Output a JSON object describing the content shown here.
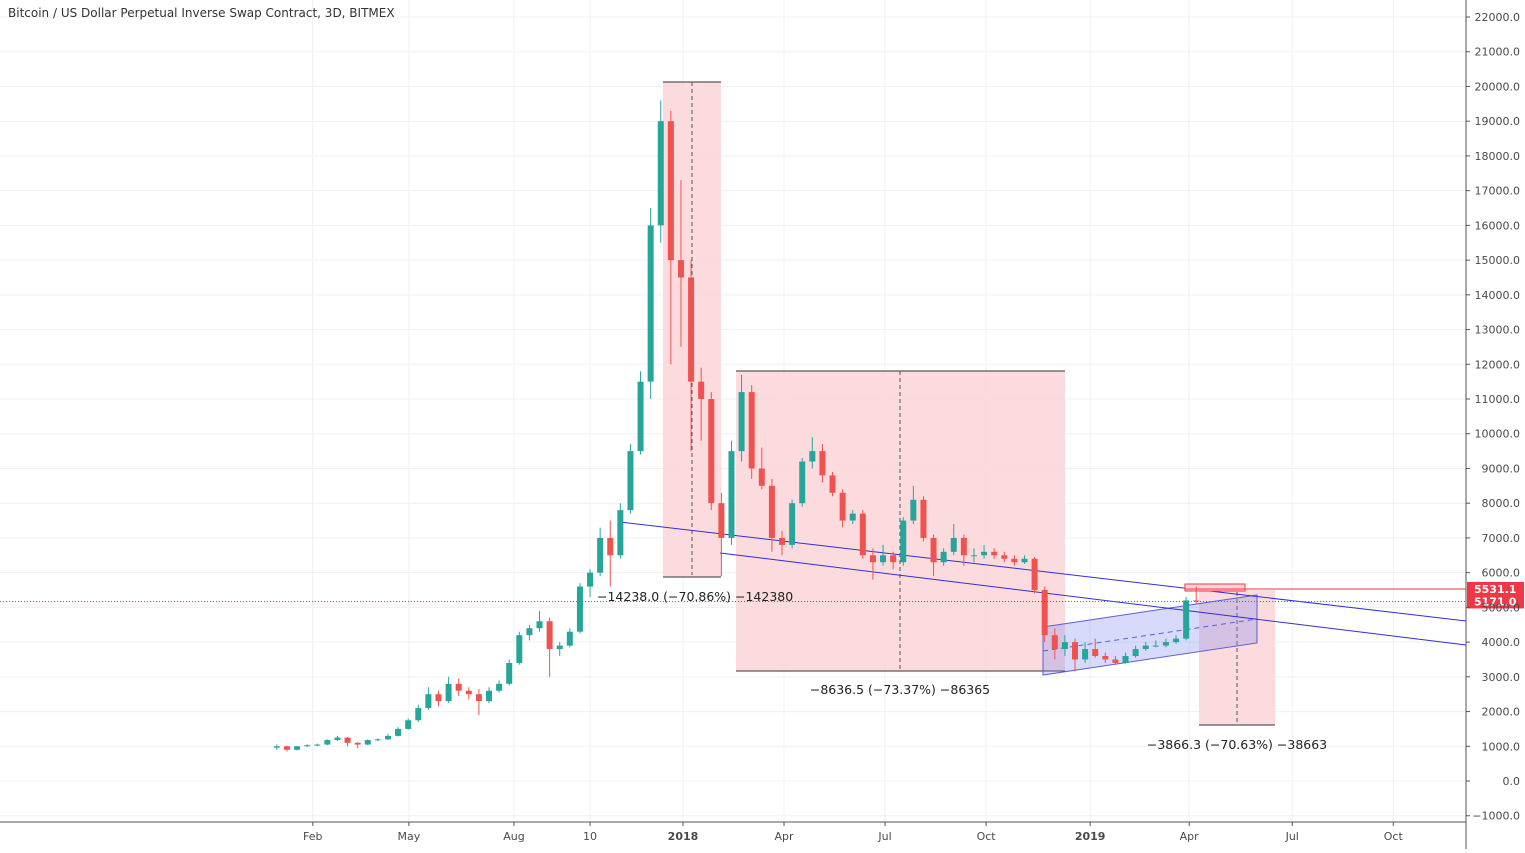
{
  "chart_data": {
    "type": "candlestick",
    "title": "Bitcoin / US Dollar Perpetual Inverse Swap Contract, 3D, BITMEX",
    "up_color": "#26a69a",
    "down_color": "#ef5350",
    "grid": true,
    "ylim": [
      -1180,
      22490
    ],
    "yticks": [
      {
        "value": 22000,
        "label": "22000.0"
      },
      {
        "value": 21000,
        "label": "21000.0"
      },
      {
        "value": 20000,
        "label": "20000.0"
      },
      {
        "value": 19000,
        "label": "19000.0"
      },
      {
        "value": 18000,
        "label": "18000.0"
      },
      {
        "value": 17000,
        "label": "17000.0"
      },
      {
        "value": 16000,
        "label": "16000.0"
      },
      {
        "value": 15000,
        "label": "15000.0"
      },
      {
        "value": 14000,
        "label": "14000.0"
      },
      {
        "value": 13000,
        "label": "13000.0"
      },
      {
        "value": 12000,
        "label": "12000.0"
      },
      {
        "value": 11000,
        "label": "11000.0"
      },
      {
        "value": 10000,
        "label": "10000.0"
      },
      {
        "value": 9000,
        "label": "9000.0"
      },
      {
        "value": 8000,
        "label": "8000.0"
      },
      {
        "value": 7000,
        "label": "7000.0"
      },
      {
        "value": 6000,
        "label": "6000.0"
      },
      {
        "value": 5000,
        "label": "5000.0"
      },
      {
        "value": 4000,
        "label": "4000.0"
      },
      {
        "value": 3000,
        "label": "3000.0"
      },
      {
        "value": 2000,
        "label": "2000.0"
      },
      {
        "value": 1000,
        "label": "1000.0"
      },
      {
        "value": 0,
        "label": "0.0"
      },
      {
        "value": -1000,
        "label": "−1000.0"
      }
    ],
    "xlim": [
      -27.4,
      117.7
    ],
    "xticks": [
      {
        "value": 3.56,
        "label": "Feb"
      },
      {
        "value": 13.07,
        "label": "May"
      },
      {
        "value": 23.47,
        "label": "Aug"
      },
      {
        "value": 31.0,
        "label": "10"
      },
      {
        "value": 40.2,
        "label": "2018"
      },
      {
        "value": 50.2,
        "label": "Apr"
      },
      {
        "value": 60.2,
        "label": "Jul"
      },
      {
        "value": 70.2,
        "label": "Oct"
      },
      {
        "value": 80.5,
        "label": "2019"
      },
      {
        "value": 90.3,
        "label": "Apr"
      },
      {
        "value": 100.5,
        "label": "Jul"
      },
      {
        "value": 110.5,
        "label": "Oct"
      }
    ],
    "ohlc": [
      [
        960,
        1050,
        900,
        1000
      ],
      [
        1000,
        1020,
        850,
        900
      ],
      [
        900,
        1010,
        880,
        1000
      ],
      [
        1000,
        1060,
        980,
        1030
      ],
      [
        1030,
        1080,
        1000,
        1050
      ],
      [
        1050,
        1200,
        1030,
        1180
      ],
      [
        1180,
        1300,
        1150,
        1250
      ],
      [
        1250,
        1270,
        1000,
        1100
      ],
      [
        1100,
        1120,
        950,
        1050
      ],
      [
        1050,
        1200,
        1030,
        1180
      ],
      [
        1180,
        1230,
        1150,
        1200
      ],
      [
        1200,
        1350,
        1180,
        1300
      ],
      [
        1300,
        1550,
        1280,
        1500
      ],
      [
        1500,
        1800,
        1480,
        1750
      ],
      [
        1750,
        2200,
        1700,
        2100
      ],
      [
        2100,
        2700,
        2050,
        2500
      ],
      [
        2500,
        2600,
        2150,
        2300
      ],
      [
        2300,
        3000,
        2250,
        2800
      ],
      [
        2800,
        2950,
        2450,
        2600
      ],
      [
        2600,
        2700,
        2350,
        2500
      ],
      [
        2500,
        2650,
        1900,
        2300
      ],
      [
        2300,
        2700,
        2250,
        2600
      ],
      [
        2600,
        2900,
        2550,
        2800
      ],
      [
        2800,
        3500,
        2750,
        3400
      ],
      [
        3400,
        4300,
        3350,
        4200
      ],
      [
        4200,
        4500,
        4050,
        4400
      ],
      [
        4400,
        4900,
        4300,
        4600
      ],
      [
        4600,
        4700,
        3000,
        3800
      ],
      [
        3800,
        4000,
        3600,
        3900
      ],
      [
        3900,
        4400,
        3850,
        4300
      ],
      [
        4300,
        5700,
        4250,
        5600
      ],
      [
        5600,
        6100,
        5300,
        6000
      ],
      [
        6000,
        7300,
        5900,
        7000
      ],
      [
        7000,
        7500,
        5600,
        6500
      ],
      [
        6500,
        8000,
        6400,
        7800
      ],
      [
        7800,
        9700,
        7700,
        9500
      ],
      [
        9500,
        11800,
        9400,
        11500
      ],
      [
        11500,
        16500,
        11000,
        16000
      ],
      [
        16000,
        19600,
        15500,
        19000
      ],
      [
        19000,
        19300,
        12000,
        15000
      ],
      [
        15000,
        17300,
        12500,
        14500
      ],
      [
        14500,
        15000,
        9500,
        11500
      ],
      [
        11500,
        11900,
        9800,
        11000
      ],
      [
        11000,
        11200,
        7800,
        8000
      ],
      [
        8000,
        8300,
        5900,
        7000
      ],
      [
        7000,
        9800,
        6800,
        9500
      ],
      [
        9500,
        11700,
        9200,
        11200
      ],
      [
        11200,
        11400,
        8700,
        9000
      ],
      [
        9000,
        9600,
        8400,
        8500
      ],
      [
        8500,
        8700,
        6600,
        7000
      ],
      [
        7000,
        7200,
        6500,
        6800
      ],
      [
        6800,
        8100,
        6700,
        8000
      ],
      [
        8000,
        9300,
        7900,
        9200
      ],
      [
        9200,
        9900,
        9000,
        9500
      ],
      [
        9500,
        9700,
        8600,
        8800
      ],
      [
        8800,
        8900,
        8200,
        8300
      ],
      [
        8300,
        8400,
        7300,
        7500
      ],
      [
        7500,
        7800,
        7400,
        7700
      ],
      [
        7700,
        7800,
        6400,
        6500
      ],
      [
        6500,
        6700,
        5800,
        6300
      ],
      [
        6300,
        6800,
        6200,
        6500
      ],
      [
        6500,
        6600,
        6100,
        6300
      ],
      [
        6300,
        7600,
        6200,
        7500
      ],
      [
        7500,
        8500,
        7400,
        8100
      ],
      [
        8100,
        8200,
        6900,
        7000
      ],
      [
        7000,
        7100,
        5900,
        6300
      ],
      [
        6300,
        6700,
        6200,
        6600
      ],
      [
        6600,
        7400,
        6500,
        7000
      ],
      [
        7000,
        7100,
        6200,
        6500
      ],
      [
        6500,
        6700,
        6300,
        6500
      ],
      [
        6500,
        6800,
        6400,
        6600
      ],
      [
        6600,
        6700,
        6400,
        6500
      ],
      [
        6500,
        6600,
        6300,
        6400
      ],
      [
        6400,
        6500,
        6200,
        6300
      ],
      [
        6300,
        6500,
        6250,
        6400
      ],
      [
        6400,
        6450,
        5400,
        5500
      ],
      [
        5500,
        5600,
        4000,
        4200
      ],
      [
        4200,
        4400,
        3500,
        3800
      ],
      [
        3800,
        4200,
        3600,
        4000
      ],
      [
        4000,
        4100,
        3150,
        3500
      ],
      [
        3500,
        4000,
        3400,
        3800
      ],
      [
        3800,
        4100,
        3550,
        3600
      ],
      [
        3600,
        3700,
        3400,
        3500
      ],
      [
        3500,
        3600,
        3350,
        3400
      ],
      [
        3400,
        3700,
        3380,
        3600
      ],
      [
        3600,
        3900,
        3550,
        3800
      ],
      [
        3800,
        4000,
        3750,
        3900
      ],
      [
        3900,
        4050,
        3850,
        3900
      ],
      [
        3900,
        4100,
        3850,
        4000
      ],
      [
        4000,
        4200,
        3950,
        4100
      ],
      [
        4100,
        5300,
        4050,
        5200
      ],
      [
        5200,
        5600,
        5100,
        5171
      ]
    ],
    "price_lines": {
      "values": [
        5531.1,
        5171.0
      ],
      "value_labels": [
        "5531.1",
        "5171.0"
      ],
      "colors": [
        "#f23645",
        "#f23645"
      ]
    },
    "annotations": [
      "−14238.0 (−70.86%) −142380",
      "−8636.5 (−73.37%) −86365",
      "−3866.3 (−70.63%) −38663"
    ]
  }
}
